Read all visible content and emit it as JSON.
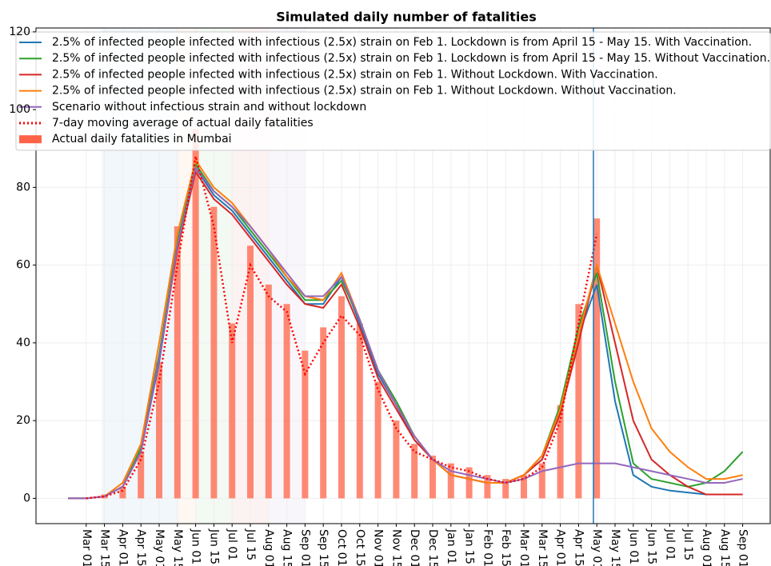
{
  "chart_data": {
    "type": "line",
    "title": "Simulated daily number of fatalities",
    "categories": [
      null,
      "Mar 01",
      "Mar 15",
      "Apr 01",
      "Apr 15",
      "May 01",
      "May 15",
      "Jun 01",
      "Jun 15",
      "Jul 01",
      "Jul 15",
      "Aug 01",
      "Aug 15",
      "Sep 01",
      "Sep 15",
      "Oct 01",
      "Oct 15",
      "Nov 01",
      "Nov 15",
      "Dec 01",
      "Dec 15",
      "Jan 01",
      "Jan 15",
      "Feb 01",
      "Feb 15",
      "Mar 01",
      "Mar 15",
      "Apr 01",
      "Apr 15",
      "May 01",
      "May 15",
      "Jun 01",
      "Jun 15",
      "Jul 01",
      "Jul 15",
      "Aug 01",
      "Aug 15",
      "Sep 01"
    ],
    "ylim": [
      -6.5,
      121
    ],
    "yticks": [
      0,
      20,
      40,
      60,
      80,
      100,
      120
    ],
    "grid": true,
    "legend": "upper left",
    "series": [
      {
        "name": "2.5% of infected people infected with infectious (2.5x) strain on Feb 1. Lockdown is from April 15 - May 15. With Vaccination.",
        "color": "#1f77b4",
        "style": "line",
        "values": [
          0,
          0,
          0.5,
          3,
          12,
          35,
          65,
          85,
          78,
          74,
          68,
          62,
          56,
          50,
          50,
          57,
          45,
          32,
          24,
          15,
          10,
          6,
          5,
          4,
          4,
          6,
          10,
          22,
          42,
          55,
          25,
          6,
          3,
          2,
          1.5,
          1,
          1,
          1
        ]
      },
      {
        "name": "2.5% of infected people infected with infectious (2.5x) strain on Feb 1. Lockdown is from April 15 - May 15. Without Vaccination.",
        "color": "#2ca02c",
        "style": "line",
        "values": [
          0,
          0,
          0.5,
          3,
          13,
          37,
          66,
          86,
          79,
          75,
          69,
          63,
          57,
          51,
          51,
          56,
          46,
          33,
          25,
          16,
          10,
          6,
          5,
          4,
          4,
          6,
          11,
          24,
          44,
          58,
          30,
          9,
          5,
          4,
          3,
          4,
          7,
          12
        ]
      },
      {
        "name": "2.5% of infected people infected with infectious (2.5x) strain on Feb 1. Without Lockdown. With Vaccination.",
        "color": "#d62728",
        "style": "line",
        "values": [
          0,
          0,
          0.5,
          3,
          12,
          36,
          64,
          84,
          77,
          73,
          67,
          61,
          55,
          50,
          49,
          55,
          44,
          31,
          23,
          15,
          10,
          6,
          5,
          4,
          4,
          6,
          10,
          22,
          40,
          60,
          40,
          20,
          10,
          6,
          3,
          1,
          1,
          1
        ]
      },
      {
        "name": "2.5% of infected people infected with infectious (2.5x) strain on Feb 1. Without Lockdown. Without Vaccination.",
        "color": "#ff7f0e",
        "style": "line",
        "values": [
          0,
          0,
          0.5,
          4,
          14,
          40,
          68,
          87,
          80,
          76,
          70,
          64,
          57,
          52,
          51,
          58,
          46,
          33,
          24,
          16,
          10,
          6,
          5,
          4,
          4,
          6,
          11,
          23,
          42,
          60,
          45,
          30,
          18,
          12,
          8,
          5,
          5,
          6
        ]
      },
      {
        "name": "Scenario without infectious strain and without lockdown",
        "color": "#9467bd",
        "style": "line",
        "values": [
          0,
          0,
          0.5,
          3,
          12,
          36,
          65,
          85,
          79,
          75,
          70,
          64,
          58,
          52,
          52,
          57,
          46,
          33,
          24,
          16,
          10,
          7,
          6,
          5,
          4,
          5,
          7,
          8,
          9,
          9,
          9,
          8,
          7,
          6,
          5,
          4,
          4,
          5
        ]
      },
      {
        "name": "7-day moving average of actual daily fatalities",
        "color": "#ff0000",
        "style": "dotted",
        "values": [
          null,
          0,
          0.5,
          2,
          10,
          30,
          60,
          88,
          70,
          40,
          60,
          52,
          48,
          32,
          40,
          47,
          42,
          28,
          18,
          12,
          10,
          8,
          7,
          5,
          4,
          5,
          8,
          20,
          45,
          68,
          null,
          null,
          null,
          null,
          null,
          null,
          null,
          null
        ]
      },
      {
        "name": "Actual daily fatalities in Mumbai",
        "color": "#ff6347",
        "style": "bar",
        "values": [
          null,
          0,
          1,
          3,
          12,
          35,
          70,
          95,
          75,
          45,
          65,
          55,
          50,
          38,
          44,
          52,
          45,
          30,
          20,
          14,
          11,
          9,
          8,
          6,
          5,
          6,
          9,
          24,
          50,
          72,
          null,
          null,
          null,
          null,
          null,
          null,
          null,
          null
        ]
      }
    ]
  }
}
